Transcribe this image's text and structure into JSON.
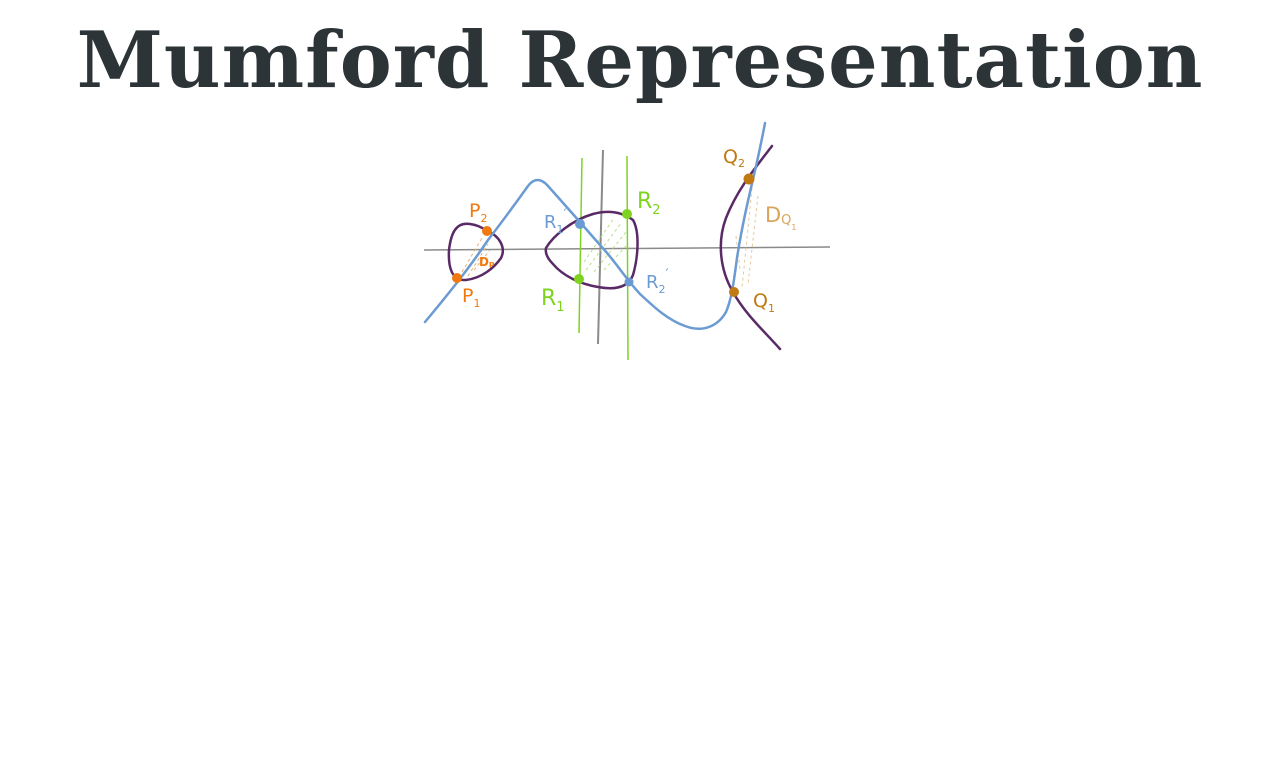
{
  "title": "Mumford Representation",
  "colors": {
    "title": "#2c3437",
    "axis": "#8a8a8a",
    "curve": "#5a2a66",
    "line_blue": "#6b9bd2",
    "line_green": "#7ed321",
    "points_orange": "#f07a10",
    "points_brown": "#c07a14",
    "point_blue": "#6b9bd2",
    "point_green": "#7ed321"
  },
  "labels": {
    "p1": {
      "main": "P",
      "sub": "1"
    },
    "p2": {
      "main": "P",
      "sub": "2"
    },
    "dp": "Dₚ",
    "r1": {
      "main": "R",
      "sub": "1"
    },
    "r2": {
      "main": "R",
      "sub": "2"
    },
    "r1p": {
      "main": "R",
      "sub": "1",
      "prime": "′"
    },
    "r2p": {
      "main": "R",
      "sub": "2",
      "prime": "′"
    },
    "q1": {
      "main": "Q",
      "sub": "1"
    },
    "q2": {
      "main": "Q",
      "sub": "2"
    },
    "dq": {
      "main": "D",
      "sub": "Q",
      "subsub": "1"
    }
  }
}
